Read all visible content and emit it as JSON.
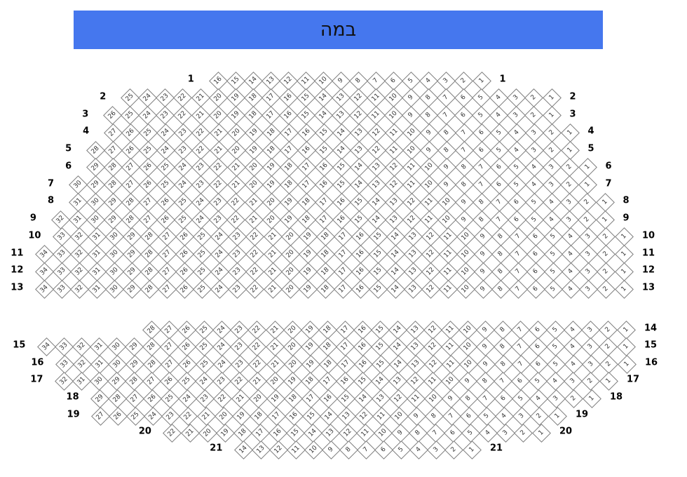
{
  "stage": {
    "label": "במה",
    "color": "#4577ee"
  },
  "rows": [
    {
      "row": "1",
      "max_seat": 16,
      "labels": [
        "left",
        "right"
      ]
    },
    {
      "row": "2",
      "max_seat": 25,
      "labels": [
        "left",
        "right"
      ]
    },
    {
      "row": "3",
      "max_seat": 26,
      "labels": [
        "left",
        "right"
      ]
    },
    {
      "row": "4",
      "max_seat": 27,
      "labels": [
        "left",
        "right"
      ]
    },
    {
      "row": "5",
      "max_seat": 28,
      "labels": [
        "left",
        "right"
      ]
    },
    {
      "row": "6",
      "max_seat": 29,
      "labels": [
        "left",
        "right"
      ]
    },
    {
      "row": "7",
      "max_seat": 30,
      "labels": [
        "left",
        "right"
      ]
    },
    {
      "row": "8",
      "max_seat": 31,
      "labels": [
        "left",
        "right"
      ]
    },
    {
      "row": "9",
      "max_seat": 32,
      "labels": [
        "left",
        "right"
      ]
    },
    {
      "row": "10",
      "max_seat": 33,
      "labels": [
        "left",
        "right"
      ]
    },
    {
      "row": "11",
      "max_seat": 34,
      "labels": [
        "left",
        "right"
      ]
    },
    {
      "row": "12",
      "max_seat": 34,
      "labels": [
        "left",
        "right"
      ]
    },
    {
      "row": "13",
      "max_seat": 34,
      "labels": [
        "left",
        "right"
      ]
    },
    {
      "row": "14",
      "max_seat": 28,
      "labels": [
        "right"
      ]
    },
    {
      "row": "15",
      "max_seat": 34,
      "labels": [
        "left",
        "right"
      ]
    },
    {
      "row": "16",
      "max_seat": 33,
      "labels": [
        "left",
        "right"
      ]
    },
    {
      "row": "17",
      "max_seat": 32,
      "labels": [
        "left",
        "right"
      ]
    },
    {
      "row": "18",
      "max_seat": 29,
      "labels": [
        "left",
        "right"
      ]
    },
    {
      "row": "19",
      "max_seat": 27,
      "labels": [
        "left",
        "right"
      ]
    },
    {
      "row": "20",
      "max_seat": 22,
      "labels": [
        "left",
        "right"
      ]
    },
    {
      "row": "21",
      "max_seat": 14,
      "labels": [
        "left",
        "right"
      ]
    }
  ]
}
